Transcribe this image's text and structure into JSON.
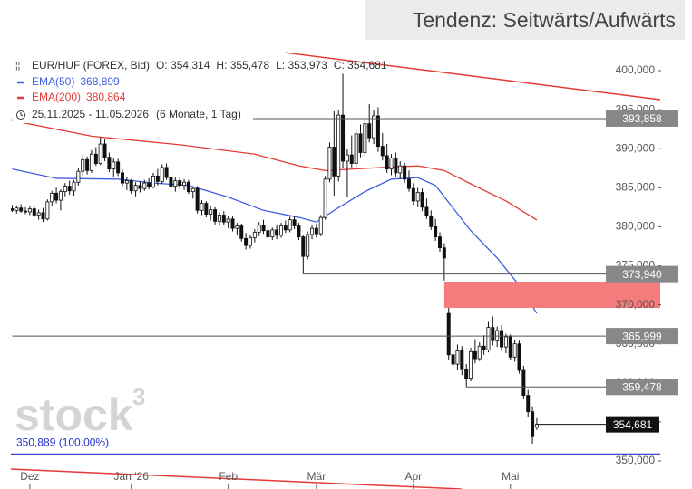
{
  "chart_data": {
    "type": "candlestick",
    "header": "Tendenz: Seitwärts/Aufwärts",
    "legend": {
      "symbol": "EUR/HUF (FOREX, Bid)",
      "open": "O: 354,314",
      "high": "H: 355,478",
      "low": "L: 353,973",
      "close": "C: 354,681",
      "range": "25.11.2025 - 11.05.2026",
      "period": "(6 Monate, 1 Tag)"
    },
    "watermark": [
      "stock",
      "3"
    ],
    "xlim": [
      -0.3,
      133
    ],
    "ylim": [
      349.07,
      402.09
    ],
    "xticks": [
      {
        "value": 4,
        "label": "Dez"
      },
      {
        "value": 27,
        "label": "Jan '26"
      },
      {
        "value": 49,
        "label": "Feb"
      },
      {
        "value": 69,
        "label": "Mär"
      },
      {
        "value": 91,
        "label": "Apr"
      },
      {
        "value": 113,
        "label": "Mai"
      }
    ],
    "yticks": [
      {
        "value": 400,
        "label": "400,000"
      },
      {
        "value": 395,
        "label": "395,000"
      },
      {
        "value": 390,
        "label": "390,000"
      },
      {
        "value": 385,
        "label": "385,000"
      },
      {
        "value": 380,
        "label": "380,000"
      },
      {
        "value": 375,
        "label": "375,000"
      },
      {
        "value": 370,
        "label": "370,000"
      },
      {
        "value": 365,
        "label": "365,000"
      },
      {
        "value": 360,
        "label": "360,000"
      },
      {
        "value": 355,
        "label": "355,000"
      },
      {
        "value": 350,
        "label": "350,000"
      }
    ],
    "up_color": "#ffffff",
    "down_color": "#111111",
    "ohlc": [
      [
        382.3,
        382.8,
        381.9,
        382.1
      ],
      [
        382.1,
        382.6,
        381.7,
        382.4
      ],
      [
        382.4,
        382.9,
        381.8,
        382.0
      ],
      [
        382.0,
        382.5,
        381.6,
        381.9
      ],
      [
        381.9,
        382.7,
        381.5,
        382.3
      ],
      [
        382.3,
        382.6,
        381.2,
        381.5
      ],
      [
        381.5,
        382.2,
        380.9,
        381.8
      ],
      [
        381.8,
        382.4,
        380.6,
        381.0
      ],
      [
        381.0,
        383.5,
        380.8,
        383.2
      ],
      [
        383.2,
        384.6,
        382.6,
        384.3
      ],
      [
        384.3,
        385.0,
        383.0,
        383.4
      ],
      [
        383.4,
        384.8,
        382.1,
        384.5
      ],
      [
        384.5,
        385.6,
        383.9,
        385.2
      ],
      [
        385.2,
        385.9,
        384.1,
        384.6
      ],
      [
        384.6,
        386.0,
        384.0,
        385.7
      ],
      [
        385.7,
        387.5,
        385.3,
        387.1
      ],
      [
        387.1,
        389.2,
        386.5,
        388.6
      ],
      [
        388.6,
        389.0,
        386.7,
        387.2
      ],
      [
        387.2,
        389.8,
        386.9,
        389.3
      ],
      [
        389.3,
        390.2,
        387.8,
        388.1
      ],
      [
        388.1,
        391.5,
        387.9,
        390.6
      ],
      [
        390.6,
        391.2,
        388.4,
        388.9
      ],
      [
        388.9,
        389.5,
        387.0,
        387.4
      ],
      [
        387.4,
        388.8,
        386.3,
        388.3
      ],
      [
        388.3,
        388.7,
        386.5,
        386.9
      ],
      [
        386.9,
        387.3,
        385.2,
        385.6
      ],
      [
        385.6,
        386.4,
        384.7,
        385.9
      ],
      [
        385.9,
        386.1,
        384.2,
        384.6
      ],
      [
        384.6,
        385.7,
        383.9,
        385.3
      ],
      [
        385.3,
        385.8,
        384.4,
        384.9
      ],
      [
        384.9,
        386.0,
        384.6,
        385.6
      ],
      [
        385.6,
        386.2,
        384.8,
        385.1
      ],
      [
        385.1,
        386.9,
        384.9,
        386.5
      ],
      [
        386.5,
        387.4,
        385.3,
        385.8
      ],
      [
        385.8,
        388.0,
        385.5,
        387.6
      ],
      [
        387.6,
        388.1,
        386.0,
        386.3
      ],
      [
        386.3,
        386.9,
        384.8,
        385.2
      ],
      [
        385.2,
        386.3,
        384.5,
        385.9
      ],
      [
        385.9,
        386.4,
        384.9,
        385.3
      ],
      [
        385.3,
        386.1,
        384.7,
        385.7
      ],
      [
        385.7,
        386.0,
        384.2,
        384.5
      ],
      [
        384.5,
        385.1,
        383.6,
        384.9
      ],
      [
        384.9,
        385.2,
        381.7,
        382.1
      ],
      [
        382.1,
        383.4,
        381.5,
        383.0
      ],
      [
        383.0,
        383.3,
        381.2,
        381.6
      ],
      [
        381.6,
        382.6,
        380.8,
        382.2
      ],
      [
        382.2,
        382.5,
        380.3,
        380.7
      ],
      [
        380.7,
        381.9,
        380.1,
        381.5
      ],
      [
        381.5,
        382.0,
        380.2,
        380.6
      ],
      [
        380.6,
        381.4,
        379.8,
        381.0
      ],
      [
        381.0,
        381.3,
        379.4,
        379.8
      ],
      [
        379.8,
        380.5,
        378.9,
        380.1
      ],
      [
        380.1,
        380.4,
        378.1,
        378.5
      ],
      [
        378.5,
        379.2,
        377.1,
        377.6
      ],
      [
        377.6,
        378.9,
        377.2,
        378.6
      ],
      [
        378.6,
        379.7,
        378.0,
        379.3
      ],
      [
        379.3,
        380.6,
        378.8,
        380.2
      ],
      [
        380.2,
        380.9,
        379.1,
        379.5
      ],
      [
        379.5,
        380.1,
        378.2,
        378.7
      ],
      [
        378.7,
        379.9,
        378.3,
        379.6
      ],
      [
        379.6,
        380.3,
        378.4,
        378.9
      ],
      [
        378.9,
        380.5,
        378.6,
        380.1
      ],
      [
        380.1,
        380.8,
        379.2,
        379.6
      ],
      [
        379.6,
        381.3,
        379.3,
        380.9
      ],
      [
        380.9,
        381.4,
        379.7,
        380.1
      ],
      [
        380.1,
        380.5,
        378.3,
        378.7
      ],
      [
        378.7,
        379.0,
        373.94,
        376.2
      ],
      [
        376.2,
        379.4,
        375.8,
        379.0
      ],
      [
        379.0,
        380.2,
        378.4,
        379.8
      ],
      [
        379.8,
        380.4,
        378.6,
        379.1
      ],
      [
        379.1,
        381.5,
        378.8,
        381.2
      ],
      [
        381.2,
        386.5,
        380.9,
        386.1
      ],
      [
        386.1,
        390.8,
        385.7,
        390.2
      ],
      [
        390.2,
        394.8,
        384.0,
        386.5
      ],
      [
        386.5,
        395.0,
        385.8,
        394.3
      ],
      [
        394.3,
        399.6,
        387.5,
        388.4
      ],
      [
        388.4,
        389.9,
        383.8,
        389.2
      ],
      [
        389.2,
        391.7,
        387.6,
        388.1
      ],
      [
        388.1,
        392.4,
        387.3,
        391.9
      ],
      [
        391.9,
        393.1,
        388.9,
        389.5
      ],
      [
        389.5,
        393.9,
        389.0,
        393.2
      ],
      [
        393.2,
        395.7,
        390.8,
        391.4
      ],
      [
        391.4,
        394.9,
        390.6,
        394.2
      ],
      [
        394.2,
        395.3,
        389.6,
        390.3
      ],
      [
        390.3,
        392.0,
        388.5,
        389.1
      ],
      [
        389.1,
        390.6,
        386.9,
        387.4
      ],
      [
        387.4,
        389.3,
        386.6,
        388.8
      ],
      [
        388.8,
        389.5,
        386.4,
        386.9
      ],
      [
        386.9,
        388.4,
        386.1,
        387.8
      ],
      [
        387.8,
        388.2,
        385.6,
        386.1
      ],
      [
        386.1,
        387.2,
        384.5,
        384.9
      ],
      [
        384.9,
        385.6,
        382.8,
        383.3
      ],
      [
        383.3,
        385.0,
        382.5,
        384.4
      ],
      [
        384.4,
        384.9,
        382.0,
        382.5
      ],
      [
        382.5,
        383.6,
        381.0,
        381.4
      ],
      [
        381.4,
        382.1,
        379.6,
        380.0
      ],
      [
        380.0,
        381.0,
        378.2,
        378.7
      ],
      [
        378.7,
        379.3,
        376.8,
        377.3
      ],
      [
        377.3,
        377.9,
        373.1,
        376.0
      ],
      [
        368.9,
        369.8,
        363.0,
        363.6
      ],
      [
        363.6,
        365.5,
        361.8,
        362.4
      ],
      [
        362.4,
        364.9,
        361.6,
        364.1
      ],
      [
        364.1,
        364.7,
        361.0,
        361.7
      ],
      [
        361.7,
        362.4,
        359.478,
        360.6
      ],
      [
        360.6,
        364.5,
        360.2,
        364.0
      ],
      [
        364.0,
        365.6,
        362.5,
        363.1
      ],
      [
        363.1,
        365.2,
        362.8,
        364.7
      ],
      [
        364.7,
        366.1,
        363.6,
        364.2
      ],
      [
        364.2,
        367.8,
        363.9,
        367.1
      ],
      [
        367.1,
        368.5,
        364.8,
        365.4
      ],
      [
        365.4,
        367.2,
        364.6,
        366.7
      ],
      [
        366.7,
        367.4,
        364.1,
        364.6
      ],
      [
        364.6,
        366.3,
        363.8,
        365.9
      ],
      [
        365.9,
        366.2,
        362.9,
        363.3
      ],
      [
        363.3,
        365.5,
        362.7,
        365.0
      ],
      [
        365.0,
        365.4,
        361.2,
        361.6
      ],
      [
        361.6,
        362.2,
        357.9,
        358.4
      ],
      [
        358.4,
        359.1,
        355.6,
        356.3
      ],
      [
        356.3,
        357.0,
        352.2,
        353.1
      ],
      [
        354.314,
        355.478,
        353.973,
        354.681
      ]
    ],
    "series": [
      {
        "name": "EMA(50)",
        "color": "#3d5fe0",
        "value_label": "368,899",
        "x": [
          0,
          10,
          24,
          32,
          40,
          49,
          57,
          65,
          69,
          73,
          80,
          86,
          92,
          96,
          100,
          104,
          110,
          115,
          119
        ],
        "values": [
          387.4,
          386.2,
          386.1,
          385.6,
          385.3,
          383.8,
          382.1,
          381.2,
          380.6,
          382.1,
          384.5,
          386.1,
          386.3,
          385.3,
          382.4,
          379.5,
          376.0,
          372.5,
          368.899
        ]
      },
      {
        "name": "EMA(200)",
        "color": "#e53935",
        "value_label": "380,864",
        "x": [
          0,
          18,
          38,
          55,
          65,
          71,
          84,
          92,
          98,
          104,
          112,
          119
        ],
        "values": [
          393.6,
          391.6,
          390.5,
          389.3,
          387.8,
          387.2,
          387.6,
          387.8,
          387.2,
          385.5,
          383.3,
          380.864
        ]
      }
    ],
    "levels": [
      {
        "value": 393.858,
        "label": "393,858",
        "start": 0,
        "color": "#888888",
        "line": "#555555"
      },
      {
        "value": 373.94,
        "label": "373,940",
        "start": 66,
        "color": "#888888",
        "line": "#555555"
      },
      {
        "value": 365.999,
        "label": "365,999",
        "start": 0,
        "color": "#888888",
        "line": "#555555"
      },
      {
        "value": 359.478,
        "label": "359,478",
        "start": 103,
        "color": "#888888",
        "line": "#555555"
      },
      {
        "value": 354.681,
        "label": "354,681",
        "start": 119,
        "color": "#111111",
        "line": "#111111"
      }
    ],
    "zone": {
      "low": 369.6,
      "high": 372.97,
      "start": 98,
      "color": "#f47c7c"
    },
    "baseline": {
      "value": 350.889,
      "label": "350,889 (100.00%)",
      "color": "#2233cc"
    },
    "trendlines": [
      {
        "color": "#e53935",
        "points": [
          [
            62,
            402.3
          ],
          [
            147,
            396.29
          ]
        ]
      },
      {
        "color": "#e53935",
        "points": [
          [
            -0.3,
            348.96
          ],
          [
            102,
            346.4
          ]
        ]
      }
    ]
  }
}
